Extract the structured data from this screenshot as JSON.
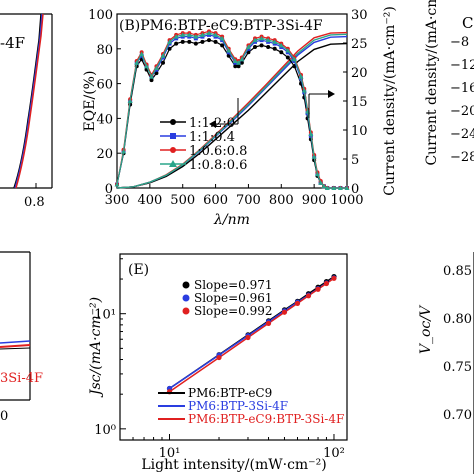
{
  "chart_data": [
    {
      "panel": "B",
      "type": "line",
      "title": "(B)PM6:BTP-eC9:BTP-3Si-4F",
      "xlabel": "λ/nm",
      "ylabel": "EQE/(%)",
      "y2label": "Current density/(mA·cm⁻²)",
      "xlim": [
        300,
        1000
      ],
      "ylim": [
        0,
        100
      ],
      "y2lim": [
        0,
        30
      ],
      "x_ticks": [
        300,
        400,
        500,
        600,
        700,
        800,
        900,
        1000
      ],
      "y_ticks": [
        0,
        20,
        40,
        60,
        80,
        100
      ],
      "y2_ticks": [
        0,
        5,
        10,
        15,
        20,
        25,
        30
      ],
      "legend": [
        "1:1.2:0",
        "1:1:0.4",
        "1:0.6:0.8",
        "1:0.8:0.6"
      ],
      "colors": [
        "#000000",
        "#2a3de0",
        "#e02020",
        "#2aa58a"
      ],
      "eqe_x": [
        300,
        320,
        340,
        360,
        375,
        390,
        405,
        420,
        440,
        460,
        480,
        500,
        520,
        540,
        560,
        580,
        600,
        620,
        640,
        660,
        670,
        680,
        700,
        720,
        740,
        760,
        780,
        800,
        820,
        840,
        860,
        870,
        880,
        890,
        900,
        910,
        920,
        930,
        940,
        960,
        980,
        1000
      ],
      "series": [
        {
          "name": "1:1.2:0",
          "eqe": [
            2,
            20,
            48,
            70,
            74,
            68,
            62,
            66,
            72,
            80,
            83,
            84,
            84,
            83,
            84,
            85,
            84,
            82,
            76,
            70,
            70,
            72,
            78,
            81,
            82,
            81,
            80,
            78,
            75,
            70,
            60,
            52,
            40,
            28,
            16,
            7,
            3,
            1,
            0,
            0,
            0,
            0
          ]
        },
        {
          "name": "1:1:0.4",
          "eqe": [
            2,
            21,
            50,
            72,
            76,
            70,
            64,
            68,
            75,
            83,
            86,
            87,
            87,
            86,
            87,
            88,
            87,
            85,
            78,
            72,
            72,
            74,
            80,
            84,
            85,
            84,
            83,
            81,
            78,
            73,
            63,
            55,
            43,
            30,
            18,
            8,
            3,
            1,
            0,
            0,
            0,
            0
          ]
        },
        {
          "name": "1:0.6:0.8",
          "eqe": [
            2,
            22,
            51,
            73,
            78,
            71,
            65,
            70,
            77,
            85,
            88,
            89,
            89,
            88,
            89,
            90,
            89,
            87,
            80,
            74,
            73,
            75,
            82,
            86,
            87,
            86,
            85,
            83,
            80,
            75,
            65,
            57,
            45,
            32,
            19,
            9,
            4,
            1,
            0,
            0,
            0,
            0
          ]
        },
        {
          "name": "1:0.8:0.6",
          "eqe": [
            2,
            21,
            50,
            72,
            77,
            70,
            64,
            69,
            76,
            84,
            87,
            88,
            88,
            87,
            88,
            89,
            88,
            86,
            79,
            73,
            72,
            74,
            81,
            85,
            86,
            85,
            84,
            82,
            79,
            74,
            64,
            56,
            44,
            31,
            18,
            8,
            3,
            1,
            0,
            0,
            0,
            0
          ]
        }
      ],
      "jsc_x": [
        300,
        350,
        400,
        450,
        500,
        550,
        600,
        650,
        700,
        750,
        800,
        850,
        900,
        950,
        1000
      ],
      "jsc": [
        [
          0,
          0.2,
          0.9,
          2.0,
          3.7,
          5.9,
          8.4,
          10.9,
          13.4,
          16.2,
          19.0,
          21.8,
          23.9,
          24.8,
          24.9
        ],
        [
          0,
          0.2,
          1.0,
          2.2,
          4.0,
          6.3,
          8.9,
          11.5,
          14.2,
          17.1,
          20.0,
          22.9,
          25.1,
          26.0,
          26.1
        ],
        [
          0,
          0.2,
          1.0,
          2.3,
          4.1,
          6.5,
          9.2,
          11.9,
          14.7,
          17.6,
          20.6,
          23.6,
          25.9,
          26.7,
          26.8
        ],
        [
          0,
          0.2,
          1.0,
          2.2,
          4.0,
          6.4,
          9.0,
          11.7,
          14.4,
          17.3,
          20.3,
          23.2,
          25.5,
          26.4,
          26.5
        ]
      ]
    },
    {
      "panel": "E",
      "type": "scatter",
      "title": "(E)",
      "xlabel": "Light intensity/(mW·cm⁻²)",
      "ylabel": "Jsc/(mA·cm⁻²)",
      "x_ticklabels": [
        "10¹",
        "10²"
      ],
      "y_ticklabels": [
        "10⁰",
        "10¹"
      ],
      "xlim": [
        5,
        120
      ],
      "ylim": [
        0.8,
        33
      ],
      "x": [
        10,
        20,
        30,
        40,
        50,
        60,
        70,
        80,
        90,
        100
      ],
      "series": [
        {
          "name": "PM6:BTP-eC9",
          "slope_label": "Slope=0.971",
          "color": "#000000",
          "values": [
            2.24,
            4.4,
            6.55,
            8.66,
            10.8,
            12.8,
            14.9,
            17.0,
            19.0,
            21.0
          ]
        },
        {
          "name": "PM6:BTP-3Si-4F",
          "slope_label": "Slope=0.961",
          "color": "#2a3de0",
          "values": [
            2.24,
            4.37,
            6.46,
            8.52,
            10.6,
            12.6,
            14.5,
            16.5,
            18.5,
            20.5
          ]
        },
        {
          "name": "PM6:BTP-eC9:BTP-3Si-4F",
          "slope_label": "Slope=0.992",
          "color": "#e02020",
          "values": [
            2.1,
            4.16,
            6.21,
            8.24,
            10.3,
            12.3,
            14.3,
            16.3,
            18.3,
            20.3
          ]
        }
      ]
    }
  ],
  "fragments": {
    "tl_label": "-4F",
    "tl_tick": "0.8",
    "bl_label": "3Si-4F",
    "bl_tick": "0",
    "c_label": "C",
    "c_ylabel": "Current density/(mA·cm",
    "c_ticks": [
      "−8",
      "−12",
      "−16",
      "−20",
      "−24",
      "−28"
    ],
    "voc_label": "V_oc/V",
    "voc_ticks": [
      "0.85",
      "0.80",
      "0.75",
      "0.70"
    ]
  }
}
